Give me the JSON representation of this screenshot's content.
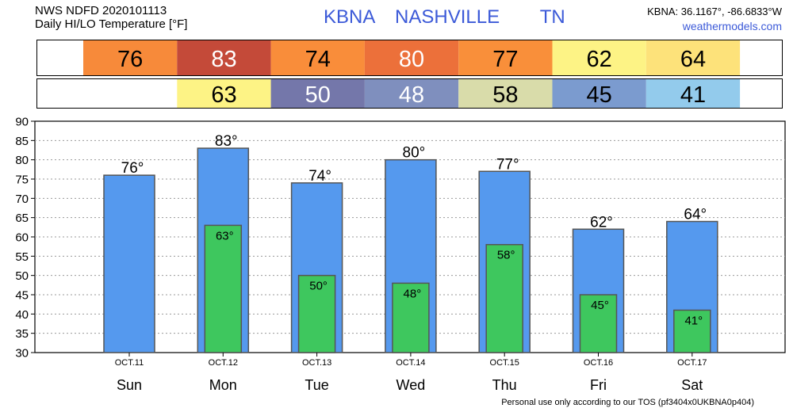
{
  "header": {
    "product": "NWS NDFD 2020101113",
    "subtitle": "Daily HI/LO Temperature [°F]",
    "station_code": "KBNA",
    "city": "NASHVILLE",
    "state": "TN",
    "coords": "KBNA: 36.1167°, -86.6833°W",
    "website": "weathermodels.com"
  },
  "footer": {
    "disclaimer": "Personal use only according to our TOS (pf3404x0UKBNA0p404)"
  },
  "colors": {
    "high_bar": "#5599ee",
    "low_bar": "#3ec75e",
    "bar_stroke": "#555555",
    "grid": "#9a9a9a",
    "title_blue": "#3c5ad8"
  },
  "chart_data": {
    "type": "bar",
    "categories": [
      "Sun",
      "Mon",
      "Tue",
      "Wed",
      "Thu",
      "Fri",
      "Sat"
    ],
    "dates": [
      "OCT.11",
      "OCT.12",
      "OCT.13",
      "OCT.14",
      "OCT.15",
      "OCT.16",
      "OCT.17"
    ],
    "degree_symbol": "°",
    "series": [
      {
        "values": [
          76,
          83,
          74,
          80,
          77,
          62,
          64
        ]
      },
      {
        "values": [
          null,
          63,
          50,
          48,
          58,
          45,
          41
        ]
      }
    ],
    "high_strip_colors": [
      "#f78a3a",
      "#c44a39",
      "#f98d3a",
      "#ec703a",
      "#f98f3a",
      "#fdf385",
      "#fde27a"
    ],
    "low_strip_colors": [
      null,
      "#fdf385",
      "#7477aa",
      "#7f8fbe",
      "#d9dcaa",
      "#7b9bcf",
      "#93cbec"
    ],
    "ylim": [
      30,
      90
    ],
    "yticks": [
      30,
      35,
      40,
      45,
      50,
      55,
      60,
      65,
      70,
      75,
      80,
      85,
      90
    ],
    "grid": true,
    "xlabel": "",
    "ylabel": ""
  }
}
